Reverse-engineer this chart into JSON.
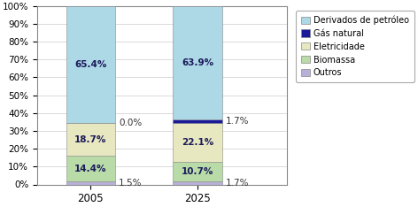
{
  "years": [
    "2005",
    "2025"
  ],
  "categories": [
    "Outros",
    "Biomassa",
    "Eletricidade",
    "Gás natural",
    "Derivados de petróleo"
  ],
  "values_2005": [
    1.5,
    14.4,
    18.7,
    0.0,
    65.4
  ],
  "values_2025": [
    1.7,
    10.7,
    22.1,
    1.7,
    63.9
  ],
  "colors": [
    "#b8b0d8",
    "#b8dba8",
    "#e8e8c0",
    "#1a1a9a",
    "#add8e6"
  ],
  "labels_inside_2005": [
    null,
    "14.4%",
    "18.7%",
    null,
    "65.4%"
  ],
  "labels_inside_2025": [
    null,
    "10.7%",
    "22.1%",
    null,
    "63.9%"
  ],
  "labels_outside_2005": [
    [
      "right",
      0.75,
      "1.5%"
    ],
    [
      "right",
      34.6,
      "0.0%"
    ]
  ],
  "labels_outside_2025": [
    [
      "right",
      0.85,
      "1.7%"
    ],
    [
      "right",
      35.5,
      "1.7%"
    ]
  ],
  "legend_labels": [
    "Derivados de petróleo",
    "Gás natural",
    "Eletricidade",
    "Biomassa",
    "Outros"
  ],
  "legend_colors": [
    "#add8e6",
    "#1a1a9a",
    "#e8e8c0",
    "#b8dba8",
    "#b8b0d8"
  ],
  "yticks": [
    0,
    10,
    20,
    30,
    40,
    50,
    60,
    70,
    80,
    90,
    100
  ],
  "background_color": "#ffffff",
  "bar_width": 0.55,
  "x_2005": 0.7,
  "x_2025": 1.9,
  "xlim": [
    0.1,
    2.9
  ],
  "text_color": "#1a1a5a",
  "fontsize": 7.5
}
